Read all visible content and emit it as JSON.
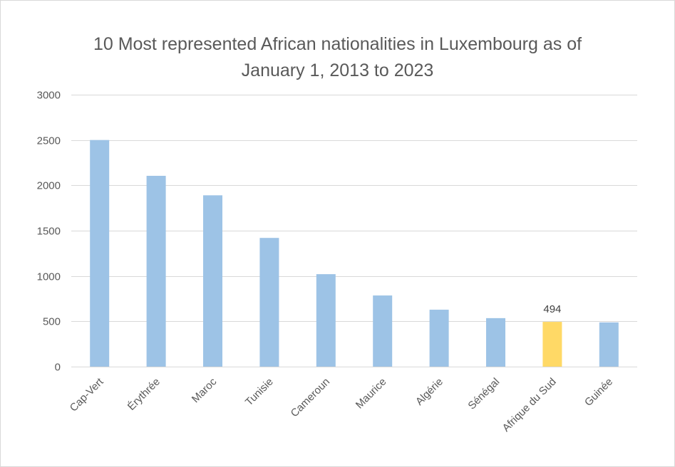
{
  "chart_data": {
    "type": "bar",
    "title_line1": "10 Most represented African nationalities in Luxembourg as of",
    "title_line2": "January 1, 2013 to 2023",
    "categories": [
      "Cap-Vert",
      "Érythrée",
      "Maroc",
      "Tunisie",
      "Cameroun",
      "Maurice",
      "Algérie",
      "Sénégal",
      "Afrique du Sud",
      "Guinée"
    ],
    "values": [
      2500,
      2105,
      1890,
      1420,
      1020,
      785,
      628,
      535,
      494,
      488
    ],
    "highlight_index": 8,
    "data_labels": [
      "",
      "",
      "",
      "",
      "",
      "",
      "",
      "",
      "494",
      ""
    ],
    "ylim": [
      0,
      3000
    ],
    "yticks": [
      0,
      500,
      1000,
      1500,
      2000,
      2500,
      3000
    ],
    "ytick_labels": [
      "0",
      "500",
      "1000",
      "1500",
      "2000",
      "2500",
      "3000"
    ],
    "grid": true,
    "legend": "none",
    "colors": {
      "bar": "#9dc3e6",
      "highlight": "#ffd966",
      "grid": "#d9d9d9",
      "text": "#595959"
    }
  }
}
